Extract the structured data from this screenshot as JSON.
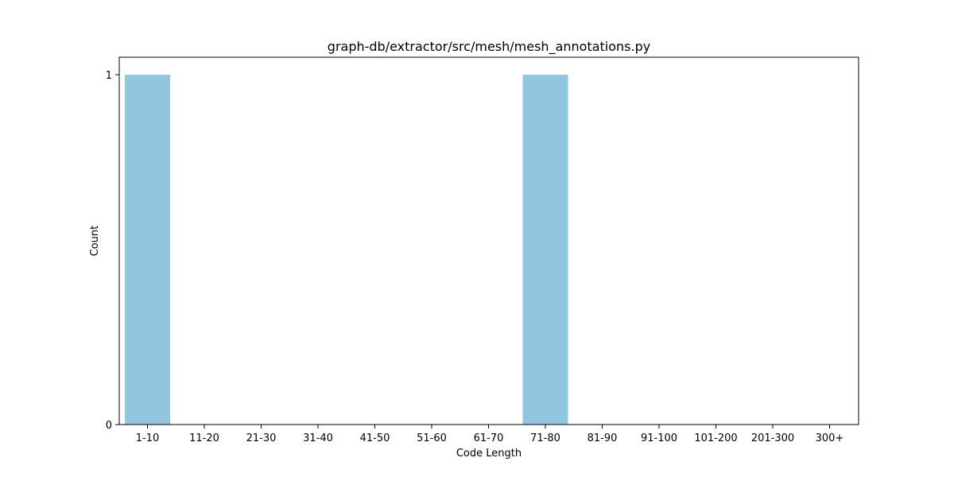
{
  "chart_data": {
    "type": "bar",
    "title": "graph-db/extractor/src/mesh/mesh_annotations.py",
    "xlabel": "Code Length",
    "ylabel": "Count",
    "categories": [
      "1-10",
      "11-20",
      "21-30",
      "31-40",
      "41-50",
      "51-60",
      "61-70",
      "71-80",
      "81-90",
      "91-100",
      "101-200",
      "201-300",
      "300+"
    ],
    "values": [
      1,
      0,
      0,
      0,
      0,
      0,
      0,
      1,
      0,
      0,
      0,
      0,
      0
    ],
    "ylim": [
      0,
      1.05
    ],
    "yticks": [
      0,
      1
    ],
    "grid": false,
    "legend": "none",
    "bar_color": "#92c5de"
  }
}
